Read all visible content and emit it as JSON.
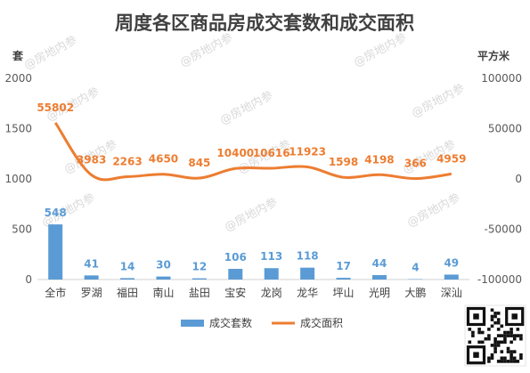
{
  "chart_data": {
    "type": "bar",
    "title": "周度各区商品房成交套数和成交面积",
    "y_left_unit": "套",
    "y_right_unit": "平方米",
    "y_left_ticks": [
      "2000",
      "1500",
      "1000",
      "500",
      "0"
    ],
    "y_right_ticks": [
      "100000",
      "50000",
      "0",
      "-50000",
      "-100000"
    ],
    "ylim_left": [
      0,
      2000
    ],
    "ylim_right": [
      -100000,
      100000
    ],
    "categories": [
      "全市",
      "罗湖",
      "福田",
      "南山",
      "盐田",
      "宝安",
      "龙岗",
      "龙华",
      "坪山",
      "光明",
      "大鹏",
      "深汕"
    ],
    "series": [
      {
        "name": "成交套数",
        "type": "bar",
        "axis": "left",
        "color": "#5b9bd5",
        "values": [
          548,
          41,
          14,
          30,
          12,
          106,
          113,
          118,
          17,
          44,
          4,
          49
        ]
      },
      {
        "name": "成交面积",
        "type": "line",
        "axis": "right",
        "color": "#ed7d31",
        "values": [
          55802,
          3983,
          2263,
          4650,
          845,
          10400,
          10616,
          11923,
          1598,
          4198,
          366,
          4959
        ]
      }
    ],
    "grid": false,
    "legend_position": "bottom",
    "watermark": "@房地内参"
  }
}
